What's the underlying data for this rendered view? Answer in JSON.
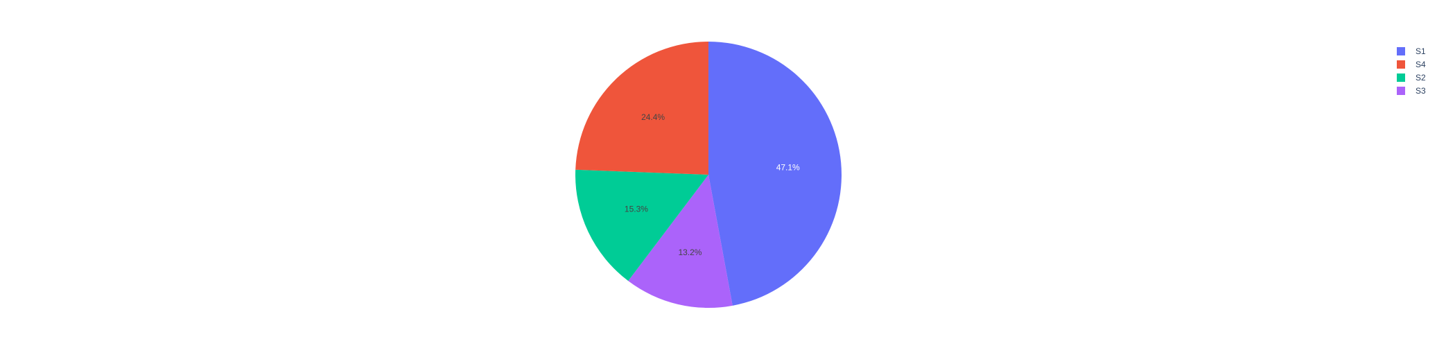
{
  "chart_data": {
    "type": "pie",
    "title": "",
    "direction": "clockwise",
    "start_angle_deg": 90,
    "slices": [
      {
        "label": "S1",
        "percent": 47.1,
        "percent_text": "47.1%",
        "color": "#636efa",
        "text_color": "#ffffff"
      },
      {
        "label": "S3",
        "percent": 13.2,
        "percent_text": "13.2%",
        "color": "#ab63fa",
        "text_color": "#444444"
      },
      {
        "label": "S2",
        "percent": 15.3,
        "percent_text": "15.3%",
        "color": "#00cc96",
        "text_color": "#444444"
      },
      {
        "label": "S4",
        "percent": 24.4,
        "percent_text": "24.4%",
        "color": "#ef553b",
        "text_color": "#444444"
      }
    ],
    "legend": {
      "placement": "top-right",
      "order": [
        "S1",
        "S4",
        "S2",
        "S3"
      ]
    }
  }
}
